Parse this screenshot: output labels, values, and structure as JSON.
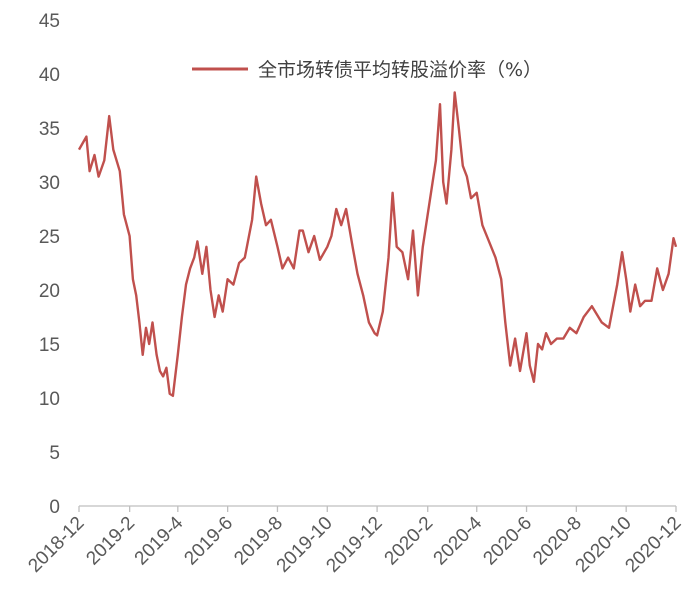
{
  "chart_data": {
    "type": "line",
    "title": "",
    "xlabel": "",
    "ylabel": "",
    "ylim": [
      0,
      45
    ],
    "y_ticks": [
      "0",
      "5",
      "10",
      "15",
      "20",
      "25",
      "30",
      "35",
      "40",
      "45"
    ],
    "x_ticks": [
      "2018-12",
      "2019-2",
      "2019-4",
      "2019-6",
      "2019-8",
      "2019-10",
      "2019-12",
      "2020-2",
      "2020-4",
      "2020-6",
      "2020-8",
      "2020-10",
      "2020-12"
    ],
    "grid": false,
    "legend_position": "top-center",
    "series": [
      {
        "name": "全市场转债平均转股溢价率（%）",
        "color": "#c0504d",
        "points": [
          [
            "2018-12",
            33.0
          ],
          [
            "2018-12-10",
            34.2
          ],
          [
            "2018-12-14",
            31.0
          ],
          [
            "2018-12-20",
            32.5
          ],
          [
            "2018-12-25",
            30.5
          ],
          [
            "2019-01",
            32.0
          ],
          [
            "2019-01-07",
            36.1
          ],
          [
            "2019-01-12",
            33.0
          ],
          [
            "2019-01-20",
            31.0
          ],
          [
            "2019-01-25",
            27.0
          ],
          [
            "2019-02",
            25.0
          ],
          [
            "2019-02-05",
            21.0
          ],
          [
            "2019-02-09",
            19.5
          ],
          [
            "2019-02-13",
            17.0
          ],
          [
            "2019-02-17",
            14.0
          ],
          [
            "2019-02-21",
            16.5
          ],
          [
            "2019-02-25",
            15.0
          ],
          [
            "2019-03",
            17.0
          ],
          [
            "2019-03-06",
            14.0
          ],
          [
            "2019-03-10",
            12.5
          ],
          [
            "2019-03-14",
            12.0
          ],
          [
            "2019-03-18",
            12.8
          ],
          [
            "2019-03-22",
            10.4
          ],
          [
            "2019-03-26",
            10.2
          ],
          [
            "2019-04",
            14.0
          ],
          [
            "2019-04-06",
            17.5
          ],
          [
            "2019-04-11",
            20.5
          ],
          [
            "2019-04-16",
            22.0
          ],
          [
            "2019-04-21",
            23.0
          ],
          [
            "2019-04-25",
            24.5
          ],
          [
            "2019-05",
            21.5
          ],
          [
            "2019-05-06",
            24.0
          ],
          [
            "2019-05-11",
            20.0
          ],
          [
            "2019-05-16",
            17.5
          ],
          [
            "2019-05-21",
            19.5
          ],
          [
            "2019-05-26",
            18.0
          ],
          [
            "2019-06",
            21.0
          ],
          [
            "2019-06-08",
            20.5
          ],
          [
            "2019-06-15",
            22.5
          ],
          [
            "2019-06-22",
            23.0
          ],
          [
            "2019-07",
            26.5
          ],
          [
            "2019-07-06",
            30.5
          ],
          [
            "2019-07-12",
            28.0
          ],
          [
            "2019-07-18",
            26.0
          ],
          [
            "2019-07-24",
            26.5
          ],
          [
            "2019-08",
            24.0
          ],
          [
            "2019-08-07",
            22.0
          ],
          [
            "2019-08-14",
            23.0
          ],
          [
            "2019-08-21",
            22.0
          ],
          [
            "2019-08-28",
            25.5
          ],
          [
            "2019-09",
            25.5
          ],
          [
            "2019-09-08",
            23.5
          ],
          [
            "2019-09-15",
            25.0
          ],
          [
            "2019-09-22",
            22.8
          ],
          [
            "2019-10",
            24.0
          ],
          [
            "2019-10-06",
            25.0
          ],
          [
            "2019-10-12",
            27.5
          ],
          [
            "2019-10-18",
            26.0
          ],
          [
            "2019-10-24",
            27.5
          ],
          [
            "2019-11",
            24.0
          ],
          [
            "2019-11-07",
            21.5
          ],
          [
            "2019-11-14",
            19.5
          ],
          [
            "2019-11-21",
            17.0
          ],
          [
            "2019-11-28",
            16.0
          ],
          [
            "2019-12",
            15.8
          ],
          [
            "2019-12-08",
            18.0
          ],
          [
            "2019-12-15",
            23.0
          ],
          [
            "2019-12-20",
            29.0
          ],
          [
            "2019-12-25",
            24.0
          ],
          [
            "2020-01",
            23.5
          ],
          [
            "2020-01-08",
            21.0
          ],
          [
            "2020-01-14",
            25.5
          ],
          [
            "2020-01-20",
            19.5
          ],
          [
            "2020-01-26",
            24.0
          ],
          [
            "2020-02",
            27.0
          ],
          [
            "2020-02-06",
            29.5
          ],
          [
            "2020-02-11",
            32.0
          ],
          [
            "2020-02-16",
            37.2
          ],
          [
            "2020-02-20",
            30.0
          ],
          [
            "2020-02-24",
            28.0
          ],
          [
            "2020-03",
            33.0
          ],
          [
            "2020-03-05",
            38.3
          ],
          [
            "2020-03-10",
            35.0
          ],
          [
            "2020-03-15",
            31.5
          ],
          [
            "2020-03-20",
            30.5
          ],
          [
            "2020-03-25",
            28.5
          ],
          [
            "2020-04",
            29.0
          ],
          [
            "2020-04-08",
            26.0
          ],
          [
            "2020-04-16",
            24.5
          ],
          [
            "2020-04-24",
            23.0
          ],
          [
            "2020-05",
            21.0
          ],
          [
            "2020-05-06",
            17.0
          ],
          [
            "2020-05-12",
            13.0
          ],
          [
            "2020-05-18",
            15.5
          ],
          [
            "2020-05-24",
            12.5
          ],
          [
            "2020-06",
            16.0
          ],
          [
            "2020-06-05",
            13.0
          ],
          [
            "2020-06-10",
            11.5
          ],
          [
            "2020-06-15",
            15.0
          ],
          [
            "2020-06-20",
            14.5
          ],
          [
            "2020-06-25",
            16.0
          ],
          [
            "2020-07",
            15.0
          ],
          [
            "2020-07-08",
            15.5
          ],
          [
            "2020-07-16",
            15.5
          ],
          [
            "2020-07-24",
            16.5
          ],
          [
            "2020-08",
            16.0
          ],
          [
            "2020-08-10",
            17.5
          ],
          [
            "2020-08-20",
            18.5
          ],
          [
            "2020-09",
            17.0
          ],
          [
            "2020-09-10",
            16.5
          ],
          [
            "2020-09-20",
            20.5
          ],
          [
            "2020-09-26",
            23.5
          ],
          [
            "2020-10",
            21.0
          ],
          [
            "2020-10-06",
            18.0
          ],
          [
            "2020-10-12",
            20.5
          ],
          [
            "2020-10-18",
            18.5
          ],
          [
            "2020-10-24",
            19.0
          ],
          [
            "2020-11",
            19.0
          ],
          [
            "2020-11-08",
            22.0
          ],
          [
            "2020-11-15",
            20.0
          ],
          [
            "2020-11-22",
            21.5
          ],
          [
            "2020-11-28",
            24.8
          ],
          [
            "2020-12",
            24.0
          ]
        ]
      }
    ]
  }
}
